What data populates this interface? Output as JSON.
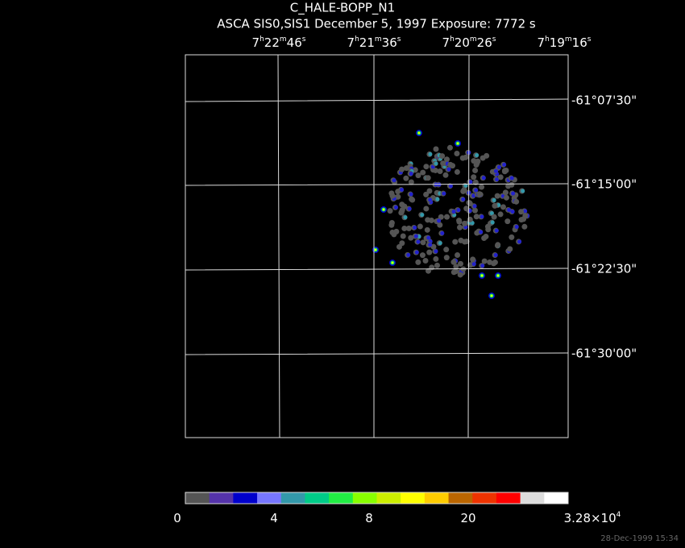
{
  "header": {
    "title": "C_HALE-BOPP_N1",
    "subtitle": "ASCA SIS0,SIS1 December 5, 1997 Exposure: 7772 s"
  },
  "ra_labels": [
    [
      "7",
      "h",
      "22",
      "m",
      "46",
      "s"
    ],
    [
      "7",
      "h",
      "21",
      "m",
      "36",
      "s"
    ],
    [
      "7",
      "h",
      "20",
      "m",
      "26",
      "s"
    ],
    [
      "7",
      "h",
      "19",
      "m",
      "16",
      "s"
    ]
  ],
  "dec_labels": [
    "-61°07'30\"",
    "-61°15'00\"",
    "-61°22'30\"",
    "-61°30'00\""
  ],
  "colorbar": {
    "colors": [
      "#555555",
      "#5533aa",
      "#0000cc",
      "#7777ff",
      "#3399aa",
      "#00cc88",
      "#22ee44",
      "#88ff00",
      "#ccee00",
      "#ffff00",
      "#ffcc00",
      "#bb6600",
      "#ee3300",
      "#ff0000",
      "#dddddd",
      "#ffffff"
    ],
    "labels": [
      [
        "0"
      ],
      [
        "4"
      ],
      [
        "8"
      ],
      [
        "20"
      ],
      [
        "3.28×10",
        "4"
      ]
    ]
  },
  "footer": {
    "timestamp": "28-Dec-1999 15:34"
  }
}
